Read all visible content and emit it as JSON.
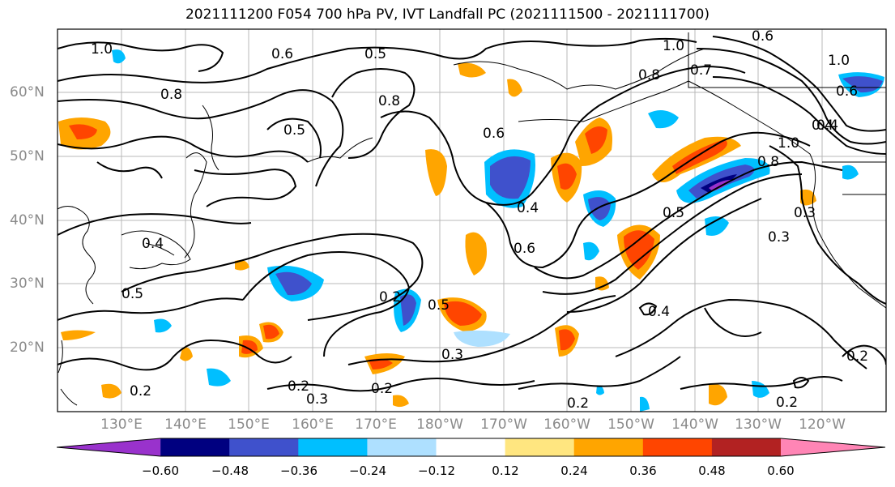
{
  "title": "2021111200 F054 700 hPa PV, IVT Landfall PC (2021111500 - 2021111700)",
  "lat_labels": [
    "60°N",
    "50°N",
    "40°N",
    "30°N",
    "20°N"
  ],
  "lon_labels": [
    "130°E",
    "140°E",
    "150°E",
    "160°E",
    "170°E",
    "180°W",
    "170°W",
    "160°W",
    "150°W",
    "140°W",
    "130°W",
    "120°W"
  ],
  "contour_labels": [
    "1.0",
    "0.5",
    "0.6",
    "0.8",
    "0.5",
    "0.8",
    "0.6",
    "0.4",
    "0.6",
    "0.4",
    "0.5",
    "0.2",
    "0.5",
    "0.3",
    "0.2",
    "0.3",
    "0.2",
    "0.2",
    "0.2",
    "0.4",
    "0.5",
    "0.3",
    "0.4",
    "1.0",
    "0.8",
    "0.7",
    "0.6",
    "1.0",
    "0.4",
    "1.0",
    "0.8",
    "0.3",
    "0.2",
    "0.2",
    "0.6"
  ],
  "colorbar": {
    "colors": [
      "#9932cc",
      "#000080",
      "#3f51cc",
      "#00bfff",
      "#aee0ff",
      "#ffffff",
      "#ffe680",
      "#ffa500",
      "#ff4500",
      "#b22222",
      "#ff85b5"
    ],
    "tick_labels": [
      "−0.60",
      "−0.48",
      "−0.36",
      "−0.24",
      "−0.12",
      "0.12",
      "0.24",
      "0.36",
      "0.48",
      "0.60"
    ]
  }
}
